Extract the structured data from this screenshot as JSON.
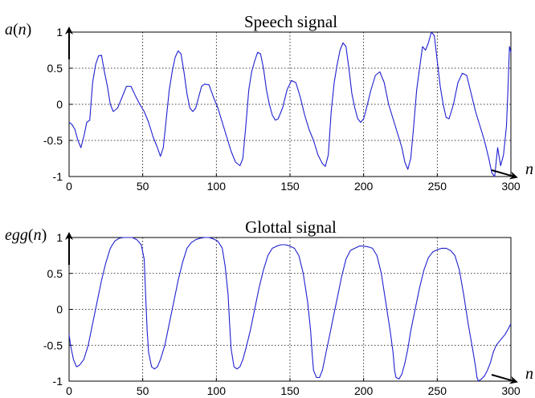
{
  "colors": {
    "series": "#1f1fd0",
    "axis": "#000000"
  },
  "chart_data": [
    {
      "type": "line",
      "title": "Speech signal",
      "ylabel_var": "a",
      "ylabel_arg": "n",
      "xlabel": "n",
      "xlim": [
        0,
        300
      ],
      "ylim": [
        -1,
        1
      ],
      "xticks": [
        0,
        50,
        100,
        150,
        200,
        250,
        300
      ],
      "yticks": [
        -1,
        -0.5,
        0,
        0.5,
        1
      ],
      "xtick_labels": [
        "0",
        "50",
        "100",
        "150",
        "200",
        "250",
        "300"
      ],
      "ytick_labels": [
        "-1",
        "-0.5",
        "0",
        "0.5",
        "1"
      ],
      "grid": true,
      "series": [
        {
          "x": [
            0,
            2,
            4,
            6,
            8,
            10,
            12,
            14,
            16,
            18,
            20,
            22,
            24,
            26,
            28,
            30,
            33,
            36,
            39,
            42,
            45,
            48,
            51,
            54,
            57,
            60,
            62,
            64,
            66,
            68,
            70,
            72,
            74,
            76,
            78,
            80,
            82,
            84,
            86,
            88,
            90,
            92,
            95,
            98,
            101,
            104,
            107,
            110,
            113,
            116,
            118,
            120,
            122,
            124,
            126,
            128,
            130,
            132,
            134,
            136,
            138,
            140,
            142,
            145,
            148,
            151,
            154,
            157,
            160,
            163,
            166,
            169,
            172,
            174,
            176,
            178,
            180,
            182,
            184,
            186,
            188,
            190,
            192,
            194,
            196,
            198,
            200,
            202,
            205,
            208,
            211,
            214,
            217,
            220,
            223,
            226,
            228,
            230,
            232,
            234,
            236,
            238,
            240,
            242,
            244,
            246,
            248,
            250,
            252,
            254,
            256,
            258,
            261,
            264,
            267,
            270,
            273,
            276,
            279,
            282,
            285,
            287,
            289,
            291,
            293,
            295,
            297,
            298,
            299,
            300
          ],
          "y": [
            -0.25,
            -0.28,
            -0.35,
            -0.5,
            -0.6,
            -0.45,
            -0.25,
            -0.22,
            0.3,
            0.55,
            0.67,
            0.68,
            0.45,
            0.25,
            0.0,
            -0.1,
            -0.05,
            0.1,
            0.25,
            0.25,
            0.12,
            0.0,
            -0.1,
            -0.25,
            -0.45,
            -0.6,
            -0.72,
            -0.6,
            -0.2,
            0.2,
            0.45,
            0.65,
            0.74,
            0.7,
            0.45,
            0.15,
            -0.05,
            -0.1,
            -0.05,
            0.1,
            0.25,
            0.28,
            0.27,
            0.1,
            -0.05,
            -0.25,
            -0.45,
            -0.65,
            -0.8,
            -0.85,
            -0.75,
            -0.3,
            0.2,
            0.45,
            0.6,
            0.72,
            0.7,
            0.5,
            0.2,
            0.0,
            -0.15,
            -0.22,
            -0.2,
            -0.05,
            0.2,
            0.33,
            0.3,
            0.1,
            -0.15,
            -0.35,
            -0.5,
            -0.7,
            -0.82,
            -0.86,
            -0.7,
            -0.1,
            0.3,
            0.55,
            0.75,
            0.85,
            0.8,
            0.5,
            0.15,
            -0.05,
            -0.2,
            -0.25,
            -0.2,
            -0.05,
            0.2,
            0.4,
            0.45,
            0.3,
            0.0,
            -0.2,
            -0.4,
            -0.6,
            -0.8,
            -0.9,
            -0.75,
            -0.3,
            0.2,
            0.5,
            0.8,
            0.75,
            0.85,
            1.0,
            0.95,
            0.6,
            0.25,
            0.0,
            -0.18,
            -0.2,
            0.0,
            0.3,
            0.43,
            0.4,
            0.15,
            -0.1,
            -0.3,
            -0.5,
            -0.75,
            -0.95,
            -1.0,
            -0.6,
            -0.85,
            -0.7,
            -0.3,
            0.2,
            0.8,
            0.72
          ]
        }
      ]
    },
    {
      "type": "line",
      "title": "Glottal signal",
      "ylabel_var": "egg",
      "ylabel_arg": "n",
      "xlabel": "n",
      "xlim": [
        0,
        300
      ],
      "ylim": [
        -1,
        1
      ],
      "xticks": [
        0,
        50,
        100,
        150,
        200,
        250,
        300
      ],
      "yticks": [
        -1,
        -0.5,
        0,
        0.5,
        1
      ],
      "xtick_labels": [
        "0",
        "50",
        "100",
        "150",
        "200",
        "250",
        "300"
      ],
      "ytick_labels": [
        "-1",
        "-0.5",
        "0",
        "0.5",
        "1"
      ],
      "grid": true,
      "series": [
        {
          "x": [
            0,
            1,
            3,
            5,
            7,
            10,
            13,
            16,
            19,
            22,
            25,
            28,
            31,
            34,
            37,
            40,
            43,
            46,
            49,
            51,
            52,
            53,
            54,
            56,
            58,
            60,
            62,
            65,
            68,
            71,
            74,
            77,
            80,
            83,
            86,
            89,
            92,
            95,
            98,
            101,
            104,
            106,
            108,
            109,
            110,
            112,
            114,
            116,
            118,
            120,
            123,
            126,
            129,
            132,
            135,
            138,
            141,
            144,
            147,
            150,
            153,
            156,
            159,
            162,
            164,
            165,
            166,
            168,
            170,
            172,
            174,
            176,
            179,
            182,
            185,
            188,
            191,
            194,
            197,
            200,
            203,
            206,
            209,
            212,
            215,
            218,
            220,
            221,
            222,
            224,
            226,
            228,
            230,
            232,
            235,
            238,
            241,
            244,
            247,
            250,
            253,
            256,
            259,
            262,
            265,
            268,
            271,
            274,
            276,
            277,
            278,
            280,
            282,
            284,
            286,
            288,
            290,
            292,
            294,
            296,
            298,
            300
          ],
          "y": [
            -0.35,
            -0.5,
            -0.7,
            -0.8,
            -0.78,
            -0.7,
            -0.5,
            -0.2,
            0.1,
            0.4,
            0.65,
            0.85,
            0.95,
            0.99,
            1.0,
            1.0,
            1.0,
            0.97,
            0.9,
            0.7,
            0.2,
            -0.3,
            -0.6,
            -0.8,
            -0.83,
            -0.8,
            -0.7,
            -0.5,
            -0.2,
            0.1,
            0.4,
            0.65,
            0.85,
            0.93,
            0.97,
            0.99,
            1.0,
            1.0,
            0.98,
            0.95,
            0.85,
            0.6,
            0.2,
            -0.2,
            -0.55,
            -0.8,
            -0.83,
            -0.8,
            -0.7,
            -0.55,
            -0.3,
            0.0,
            0.3,
            0.55,
            0.75,
            0.85,
            0.88,
            0.9,
            0.9,
            0.88,
            0.85,
            0.75,
            0.5,
            0.1,
            -0.3,
            -0.6,
            -0.85,
            -0.95,
            -0.95,
            -0.85,
            -0.65,
            -0.45,
            -0.15,
            0.15,
            0.45,
            0.7,
            0.82,
            0.85,
            0.88,
            0.88,
            0.87,
            0.85,
            0.75,
            0.5,
            0.1,
            -0.3,
            -0.6,
            -0.85,
            -0.95,
            -0.97,
            -0.9,
            -0.75,
            -0.55,
            -0.3,
            0.0,
            0.3,
            0.55,
            0.72,
            0.8,
            0.83,
            0.85,
            0.85,
            0.82,
            0.75,
            0.55,
            0.2,
            -0.2,
            -0.55,
            -0.8,
            -0.95,
            -1.0,
            -0.97,
            -0.93,
            -0.85,
            -0.75,
            -0.6,
            -0.5,
            -0.45,
            -0.4,
            -0.35,
            -0.28,
            -0.2
          ]
        }
      ]
    }
  ]
}
